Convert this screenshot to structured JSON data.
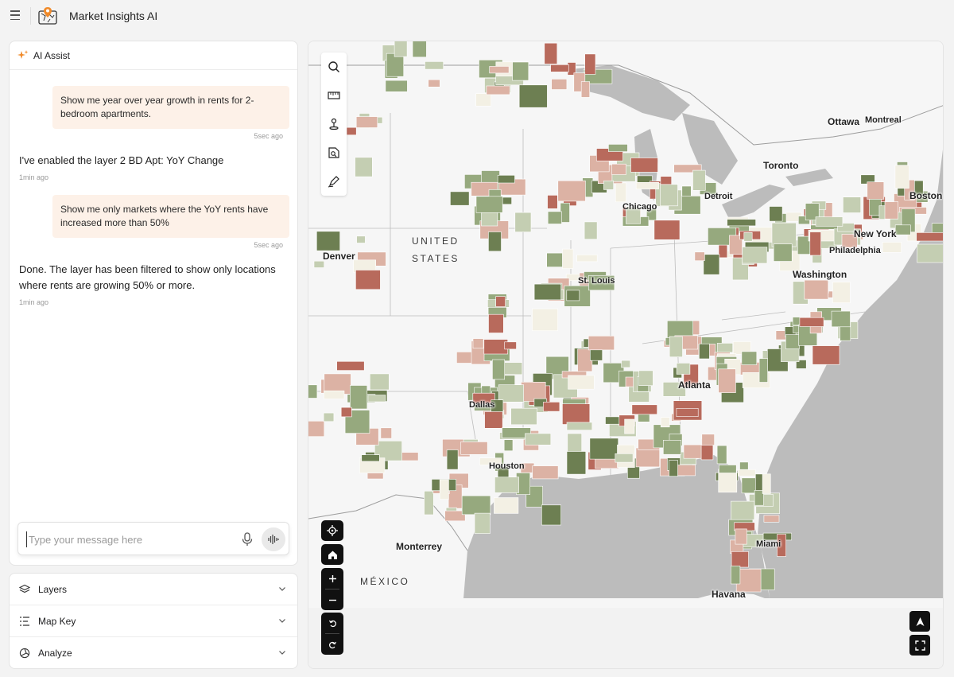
{
  "app": {
    "title": "Market Insights AI"
  },
  "chat": {
    "header": "AI Assist",
    "messages": [
      {
        "role": "user",
        "text": "Show me year over year growth in rents for 2-bedroom apartments.",
        "time": "5sec ago"
      },
      {
        "role": "assistant",
        "text": "I've enabled the layer 2 BD Apt: YoY Change",
        "time": "1min ago"
      },
      {
        "role": "user",
        "text": "Show me only markets where the YoY rents have increased more than 50%",
        "time": "5sec ago"
      },
      {
        "role": "assistant",
        "text": "Done. The layer has been filtered to show only locations where rents are growing 50% or more.",
        "time": "1min ago"
      }
    ],
    "input": {
      "placeholder": "Type your message here",
      "value": ""
    }
  },
  "accordion": [
    {
      "label": "Layers",
      "icon": "layers-icon"
    },
    {
      "label": "Map Key",
      "icon": "list-icon"
    },
    {
      "label": "Analyze",
      "icon": "analyze-icon"
    }
  ],
  "map": {
    "labels": {
      "ottawa": "Ottawa",
      "montreal": "Montreal",
      "toronto": "Toronto",
      "detroit": "Detroit",
      "boston": "Boston",
      "chicago": "Chicago",
      "newyork": "New York",
      "philadelphia": "Philadelphia",
      "washington": "Washington",
      "stlouis": "St. Louis",
      "denver": "Denver",
      "atlanta": "Atlanta",
      "dallas": "Dallas",
      "houston": "Houston",
      "miami": "Miami",
      "monterrey": "Monterrey",
      "havana": "Havana",
      "us1": "UNITED",
      "us2": "STATES",
      "mexico": "MÉXICO"
    },
    "colors": {
      "water": "#bcbcbc",
      "land": "#f6f6f6",
      "high": "#b86a5c",
      "mid": "#dcb2a4",
      "low": "#f3f0e4",
      "green1": "#c4ceb2",
      "green2": "#96a97e",
      "green3": "#6d7f52"
    },
    "tools": [
      "search-icon",
      "ruler-icon",
      "person-pin-icon",
      "shape-search-icon",
      "draw-icon"
    ]
  }
}
